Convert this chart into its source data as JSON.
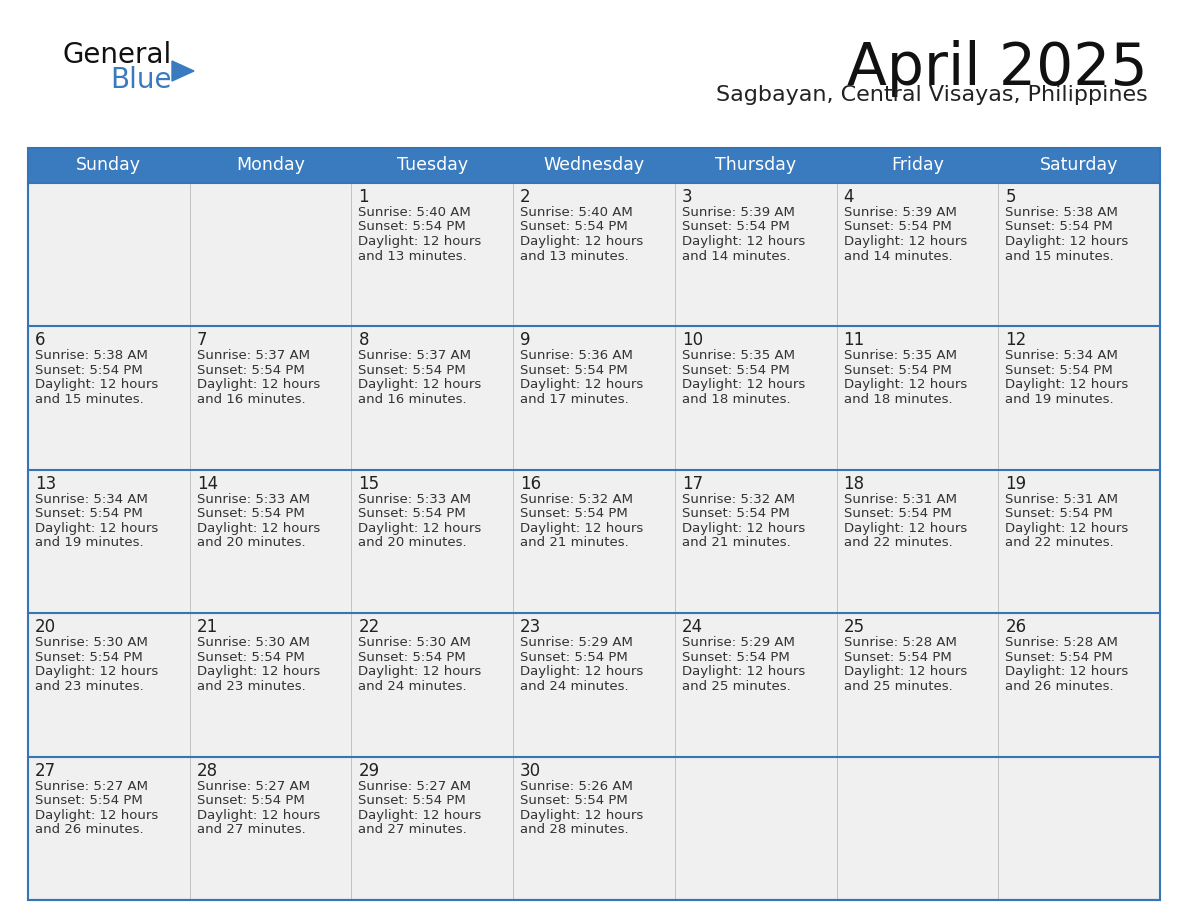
{
  "title": "April 2025",
  "subtitle": "Sagbayan, Central Visayas, Philippines",
  "header_bg": "#3a7bbf",
  "header_text": "#ffffff",
  "row_bg": "#f0f0f0",
  "row_bg_last_empty": "#f5f5f5",
  "border_color": "#3575b5",
  "cell_border_color": "#cccccc",
  "day_names": [
    "Sunday",
    "Monday",
    "Tuesday",
    "Wednesday",
    "Thursday",
    "Friday",
    "Saturday"
  ],
  "calendar_data": [
    [
      {
        "day": "",
        "info": ""
      },
      {
        "day": "",
        "info": ""
      },
      {
        "day": "1",
        "info": "Sunrise: 5:40 AM\nSunset: 5:54 PM\nDaylight: 12 hours\nand 13 minutes."
      },
      {
        "day": "2",
        "info": "Sunrise: 5:40 AM\nSunset: 5:54 PM\nDaylight: 12 hours\nand 13 minutes."
      },
      {
        "day": "3",
        "info": "Sunrise: 5:39 AM\nSunset: 5:54 PM\nDaylight: 12 hours\nand 14 minutes."
      },
      {
        "day": "4",
        "info": "Sunrise: 5:39 AM\nSunset: 5:54 PM\nDaylight: 12 hours\nand 14 minutes."
      },
      {
        "day": "5",
        "info": "Sunrise: 5:38 AM\nSunset: 5:54 PM\nDaylight: 12 hours\nand 15 minutes."
      }
    ],
    [
      {
        "day": "6",
        "info": "Sunrise: 5:38 AM\nSunset: 5:54 PM\nDaylight: 12 hours\nand 15 minutes."
      },
      {
        "day": "7",
        "info": "Sunrise: 5:37 AM\nSunset: 5:54 PM\nDaylight: 12 hours\nand 16 minutes."
      },
      {
        "day": "8",
        "info": "Sunrise: 5:37 AM\nSunset: 5:54 PM\nDaylight: 12 hours\nand 16 minutes."
      },
      {
        "day": "9",
        "info": "Sunrise: 5:36 AM\nSunset: 5:54 PM\nDaylight: 12 hours\nand 17 minutes."
      },
      {
        "day": "10",
        "info": "Sunrise: 5:35 AM\nSunset: 5:54 PM\nDaylight: 12 hours\nand 18 minutes."
      },
      {
        "day": "11",
        "info": "Sunrise: 5:35 AM\nSunset: 5:54 PM\nDaylight: 12 hours\nand 18 minutes."
      },
      {
        "day": "12",
        "info": "Sunrise: 5:34 AM\nSunset: 5:54 PM\nDaylight: 12 hours\nand 19 minutes."
      }
    ],
    [
      {
        "day": "13",
        "info": "Sunrise: 5:34 AM\nSunset: 5:54 PM\nDaylight: 12 hours\nand 19 minutes."
      },
      {
        "day": "14",
        "info": "Sunrise: 5:33 AM\nSunset: 5:54 PM\nDaylight: 12 hours\nand 20 minutes."
      },
      {
        "day": "15",
        "info": "Sunrise: 5:33 AM\nSunset: 5:54 PM\nDaylight: 12 hours\nand 20 minutes."
      },
      {
        "day": "16",
        "info": "Sunrise: 5:32 AM\nSunset: 5:54 PM\nDaylight: 12 hours\nand 21 minutes."
      },
      {
        "day": "17",
        "info": "Sunrise: 5:32 AM\nSunset: 5:54 PM\nDaylight: 12 hours\nand 21 minutes."
      },
      {
        "day": "18",
        "info": "Sunrise: 5:31 AM\nSunset: 5:54 PM\nDaylight: 12 hours\nand 22 minutes."
      },
      {
        "day": "19",
        "info": "Sunrise: 5:31 AM\nSunset: 5:54 PM\nDaylight: 12 hours\nand 22 minutes."
      }
    ],
    [
      {
        "day": "20",
        "info": "Sunrise: 5:30 AM\nSunset: 5:54 PM\nDaylight: 12 hours\nand 23 minutes."
      },
      {
        "day": "21",
        "info": "Sunrise: 5:30 AM\nSunset: 5:54 PM\nDaylight: 12 hours\nand 23 minutes."
      },
      {
        "day": "22",
        "info": "Sunrise: 5:30 AM\nSunset: 5:54 PM\nDaylight: 12 hours\nand 24 minutes."
      },
      {
        "day": "23",
        "info": "Sunrise: 5:29 AM\nSunset: 5:54 PM\nDaylight: 12 hours\nand 24 minutes."
      },
      {
        "day": "24",
        "info": "Sunrise: 5:29 AM\nSunset: 5:54 PM\nDaylight: 12 hours\nand 25 minutes."
      },
      {
        "day": "25",
        "info": "Sunrise: 5:28 AM\nSunset: 5:54 PM\nDaylight: 12 hours\nand 25 minutes."
      },
      {
        "day": "26",
        "info": "Sunrise: 5:28 AM\nSunset: 5:54 PM\nDaylight: 12 hours\nand 26 minutes."
      }
    ],
    [
      {
        "day": "27",
        "info": "Sunrise: 5:27 AM\nSunset: 5:54 PM\nDaylight: 12 hours\nand 26 minutes."
      },
      {
        "day": "28",
        "info": "Sunrise: 5:27 AM\nSunset: 5:54 PM\nDaylight: 12 hours\nand 27 minutes."
      },
      {
        "day": "29",
        "info": "Sunrise: 5:27 AM\nSunset: 5:54 PM\nDaylight: 12 hours\nand 27 minutes."
      },
      {
        "day": "30",
        "info": "Sunrise: 5:26 AM\nSunset: 5:54 PM\nDaylight: 12 hours\nand 28 minutes."
      },
      {
        "day": "",
        "info": ""
      },
      {
        "day": "",
        "info": ""
      },
      {
        "day": "",
        "info": ""
      }
    ]
  ],
  "logo_text_general": "General",
  "logo_text_blue": "Blue",
  "logo_color_general": "#111111",
  "logo_color_blue": "#3a7bbf",
  "logo_triangle_color": "#3a7bbf",
  "title_color": "#111111",
  "subtitle_color": "#222222",
  "day_number_color": "#222222",
  "cell_text_color": "#333333"
}
